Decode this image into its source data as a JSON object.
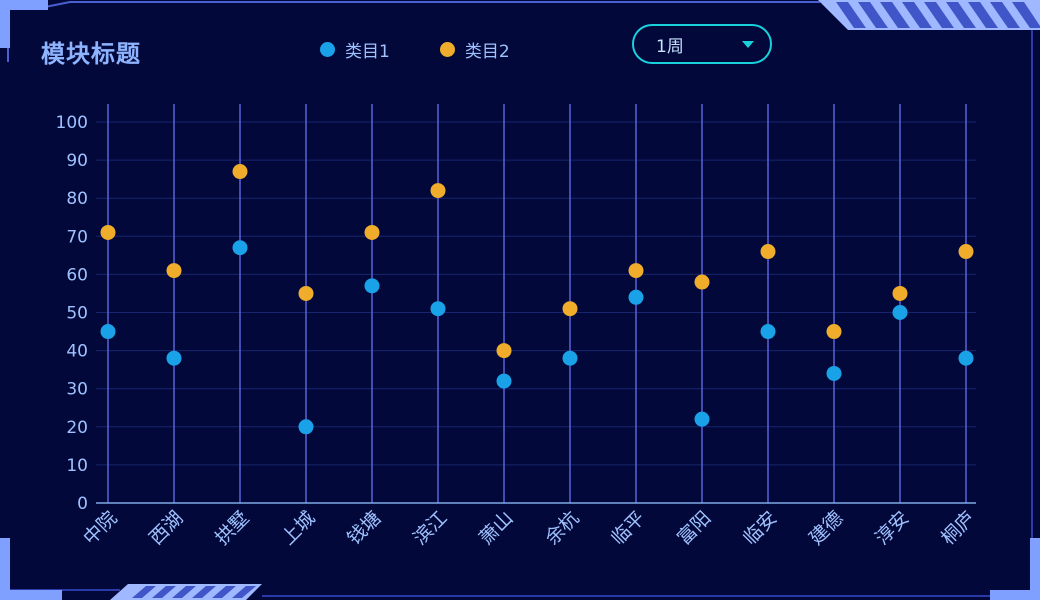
{
  "module_title": "模块标题",
  "dropdown": {
    "selected": "1周"
  },
  "colors": {
    "series1": "#1aa2e8",
    "series2": "#f0ad2c",
    "accent": "#18d1dc"
  },
  "chart_data": {
    "type": "scatter",
    "title": "",
    "xlabel": "",
    "ylabel": "",
    "ylim": [
      0,
      100
    ],
    "yticks": [
      "0",
      "10",
      "20",
      "30",
      "40",
      "50",
      "60",
      "70",
      "80",
      "90",
      "100"
    ],
    "categories": [
      "中院",
      "西湖",
      "拱墅",
      "上城",
      "钱塘",
      "滨江",
      "萧山",
      "余杭",
      "临平",
      "富阳",
      "临安",
      "建德",
      "淳安",
      "桐庐"
    ],
    "series": [
      {
        "name": "类目1",
        "values": [
          45,
          38,
          67,
          20,
          57,
          51,
          32,
          38,
          54,
          22,
          45,
          34,
          50,
          38
        ]
      },
      {
        "name": "类目2",
        "values": [
          71,
          61,
          87,
          55,
          71,
          82,
          40,
          51,
          61,
          58,
          66,
          45,
          55,
          66
        ]
      }
    ],
    "legend": "top-center",
    "grid": true
  }
}
